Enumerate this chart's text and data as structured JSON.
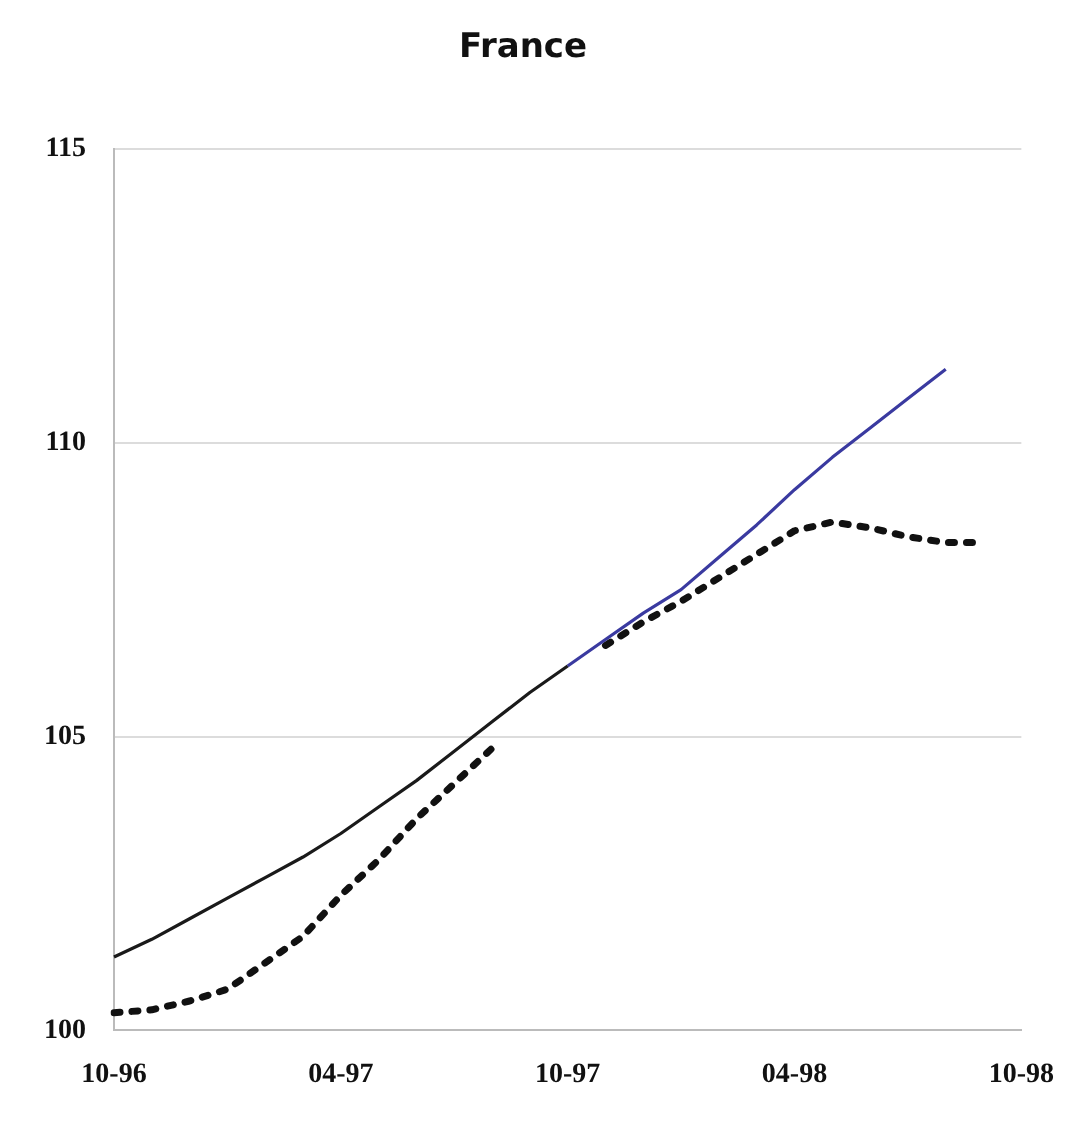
{
  "chart_data": {
    "type": "line",
    "title": "France",
    "categories": [
      "10-96",
      null,
      null,
      null,
      null,
      null,
      "04-97",
      null,
      null,
      null,
      null,
      null,
      "10-97",
      null,
      null,
      null,
      null,
      null,
      "04-98",
      null,
      null,
      null,
      null,
      null,
      "10-98"
    ],
    "series": [
      {
        "color": "#1a1a1a",
        "line_style": "solid",
        "values": [
          101.25,
          101.55,
          101.9,
          102.25,
          102.6,
          102.95,
          103.35,
          103.8,
          104.25,
          104.75,
          105.25,
          105.75,
          106.2,
          null,
          null,
          null,
          null,
          null,
          null,
          null,
          null,
          null,
          null,
          null,
          null
        ]
      },
      {
        "color": "#3a3aa0",
        "line_style": "solid",
        "values": [
          null,
          null,
          null,
          null,
          null,
          null,
          null,
          null,
          null,
          null,
          null,
          null,
          106.2,
          106.65,
          107.1,
          107.5,
          108.05,
          108.6,
          109.2,
          109.75,
          110.25,
          110.75,
          111.25,
          null,
          null
        ]
      },
      {
        "color": "#111111",
        "line_style": "dotted",
        "values": [
          100.3,
          100.35,
          100.5,
          100.7,
          101.15,
          101.6,
          102.3,
          102.9,
          103.6,
          104.2,
          104.8,
          null,
          null,
          106.55,
          106.95,
          107.3,
          107.7,
          108.1,
          108.5,
          108.65,
          108.55,
          108.4,
          108.3,
          108.3,
          null
        ]
      }
    ],
    "ylim": [
      100,
      115
    ],
    "yticks": [
      100,
      105,
      110,
      115
    ],
    "grid": "y",
    "legend": false,
    "marker": "none"
  }
}
